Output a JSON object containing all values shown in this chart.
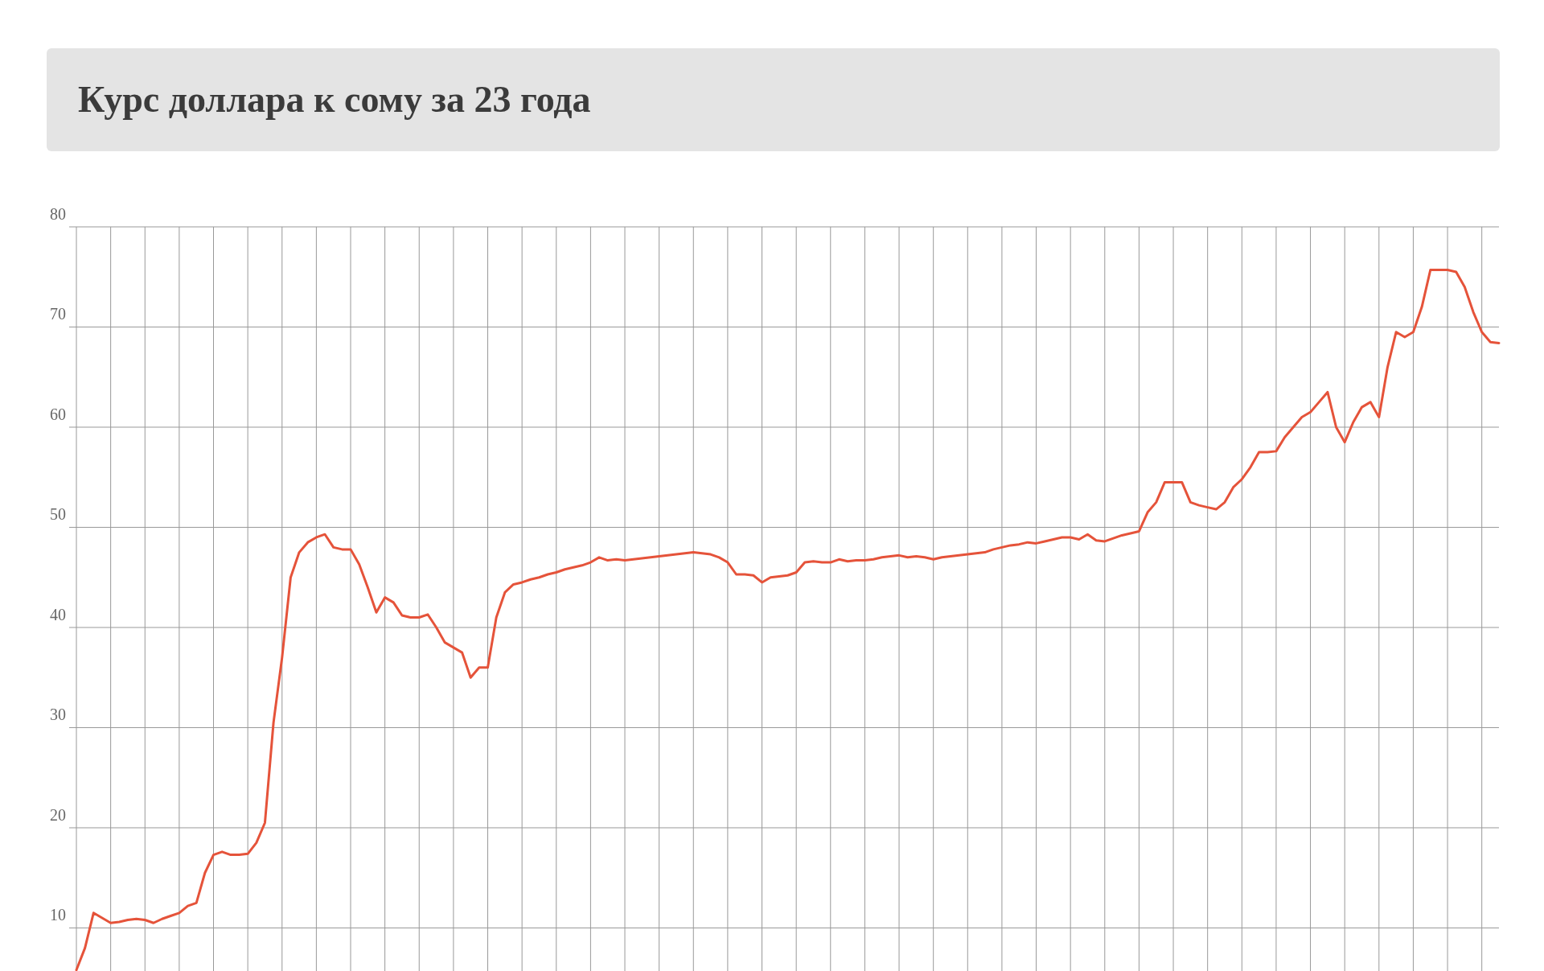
{
  "chart_data": {
    "type": "line",
    "title": "Курс доллара к сому за 23 года",
    "categories": [
      null,
      null,
      null,
      null,
      null,
      null,
      null,
      null,
      null,
      null,
      null,
      null,
      null,
      null,
      null,
      null,
      null,
      null,
      null,
      null,
      null,
      null,
      null,
      null,
      null,
      null,
      null,
      null,
      null,
      null,
      null,
      null,
      null,
      null,
      null,
      null,
      null,
      null,
      null,
      null,
      null,
      null,
      null,
      null,
      null,
      null,
      null,
      null,
      null,
      null,
      null,
      null,
      null,
      null,
      null,
      null,
      null,
      null,
      null,
      null,
      null,
      null,
      null,
      null,
      null,
      null,
      null,
      null,
      null,
      null,
      null,
      null,
      null,
      null,
      null,
      null,
      null,
      null,
      null,
      null,
      null,
      null,
      null,
      null,
      null,
      null,
      null,
      null,
      null,
      null,
      null,
      null,
      null,
      null,
      null,
      null,
      null,
      null,
      null,
      null,
      null,
      null,
      null,
      null,
      null,
      null,
      null,
      null,
      null,
      null,
      null,
      null,
      null,
      null,
      null,
      null,
      null,
      null,
      null,
      null,
      null,
      null,
      null,
      null,
      null,
      null,
      null,
      null,
      null,
      null,
      null,
      null,
      null,
      null,
      null,
      null,
      null,
      null,
      null,
      null,
      null,
      null,
      null,
      null,
      null,
      null,
      null,
      null,
      null,
      null,
      null,
      null,
      null,
      null,
      null,
      null,
      null,
      null,
      null,
      null,
      null,
      null,
      null,
      null,
      null,
      null,
      null
    ],
    "series": [
      {
        "color": "#e5533a",
        "values": [
          5.8,
          8,
          11.5,
          11,
          10.5,
          10.6,
          10.8,
          10.9,
          10.8,
          10.5,
          10.9,
          11.2,
          11.5,
          12.2,
          12.5,
          15.5,
          17.3,
          17.6,
          17.3,
          17.3,
          17.4,
          18.5,
          20.5,
          30.5,
          37,
          45,
          47.5,
          48.5,
          49,
          49.3,
          48,
          47.8,
          47.8,
          46.3,
          44,
          41.5,
          43,
          42.5,
          41.2,
          41,
          41,
          41.3,
          40,
          38.5,
          38,
          37.5,
          35,
          36,
          36,
          41,
          43.5,
          44.3,
          44.5,
          44.8,
          45,
          45.3,
          45.5,
          45.8,
          46,
          46.2,
          46.5,
          47,
          46.7,
          46.8,
          46.7,
          46.8,
          46.9,
          47,
          47.1,
          47.2,
          47.3,
          47.4,
          47.5,
          47.4,
          47.3,
          47,
          46.5,
          45.3,
          45.3,
          45.2,
          44.5,
          45,
          45.1,
          45.2,
          45.5,
          46.5,
          46.6,
          46.5,
          46.5,
          46.8,
          46.6,
          46.7,
          46.7,
          46.8,
          47,
          47.1,
          47.2,
          47,
          47.1,
          47,
          46.8,
          47,
          47.1,
          47.2,
          47.3,
          47.4,
          47.5,
          47.8,
          48,
          48.2,
          48.3,
          48.5,
          48.4,
          48.6,
          48.8,
          49,
          49,
          48.8,
          49.3,
          48.7,
          48.6,
          48.9,
          49.2,
          49.4,
          49.6,
          51.5,
          52.5,
          54.5,
          54.5,
          54.5,
          52.5,
          52.2,
          52,
          51.8,
          52.5,
          54,
          54.8,
          56,
          57.5,
          57.5,
          57.6,
          59,
          60,
          61,
          61.5,
          62.5,
          63.5,
          60,
          58.5,
          60.5,
          62,
          62.5,
          61,
          66,
          69.5,
          69,
          69.5,
          72,
          75.7,
          75.7,
          75.7,
          75.5,
          74,
          71.5,
          69.5,
          68.5,
          68.4
        ]
      }
    ],
    "ylim": [
      5.7,
      80
    ],
    "yticks": [
      10,
      20,
      30,
      40,
      50,
      60,
      70,
      80
    ],
    "grid": true
  }
}
